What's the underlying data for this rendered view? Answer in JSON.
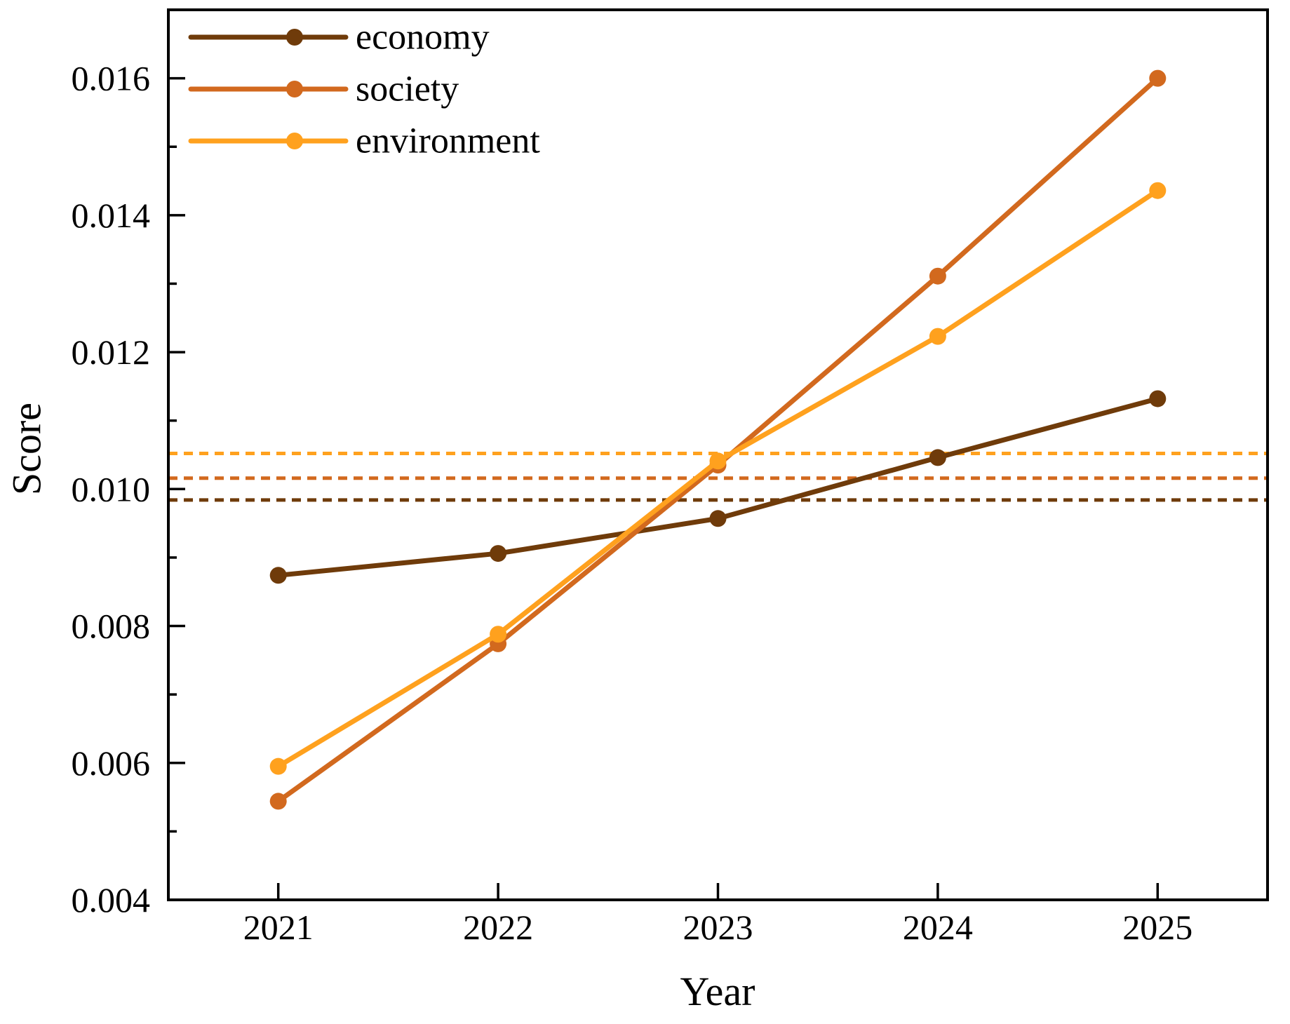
{
  "chart_data": {
    "type": "line",
    "title": "",
    "xlabel": "Year",
    "ylabel": "Score",
    "x": [
      2021,
      2022,
      2023,
      2024,
      2025
    ],
    "xtick_labels": [
      "2021",
      "2022",
      "2023",
      "2024",
      "2025"
    ],
    "xlim": [
      2020.5,
      2025.5
    ],
    "ylim": [
      0.004,
      0.017
    ],
    "yticks_major": [
      {
        "v": 0.004,
        "label": "0.004"
      },
      {
        "v": 0.006,
        "label": "0.006"
      },
      {
        "v": 0.008,
        "label": "0.008"
      },
      {
        "v": 0.01,
        "label": "0.010"
      },
      {
        "v": 0.012,
        "label": "0.012"
      },
      {
        "v": 0.014,
        "label": "0.014"
      },
      {
        "v": 0.016,
        "label": "0.016"
      }
    ],
    "yticks_minor": [
      0.005,
      0.007,
      0.009,
      0.011,
      0.013,
      0.015
    ],
    "grid": false,
    "legend_position": "top-left",
    "legend": [
      "economy",
      "society",
      "environment"
    ],
    "series": [
      {
        "name": "economy",
        "color": "#6F3B0A",
        "values": [
          0.00874,
          0.00906,
          0.00957,
          0.01046,
          0.01132
        ]
      },
      {
        "name": "society",
        "color": "#D2691E",
        "values": [
          0.00544,
          0.00774,
          0.01035,
          0.01311,
          0.016
        ]
      },
      {
        "name": "environment",
        "color": "#FFA11E",
        "values": [
          0.00595,
          0.00788,
          0.01041,
          0.01223,
          0.01436
        ]
      }
    ],
    "reference_lines": [
      {
        "name": "dashed-amber",
        "color": "#FFA11E",
        "value": 0.01052,
        "style": "dashed"
      },
      {
        "name": "dashed-chocolate",
        "color": "#D2691E",
        "value": 0.01016,
        "style": "dashed"
      },
      {
        "name": "dashed-brown",
        "color": "#6F3B0A",
        "value": 0.00984,
        "style": "dashed"
      }
    ],
    "colors": {
      "axis": "#000000",
      "text": "#000000",
      "background": "#ffffff"
    }
  }
}
